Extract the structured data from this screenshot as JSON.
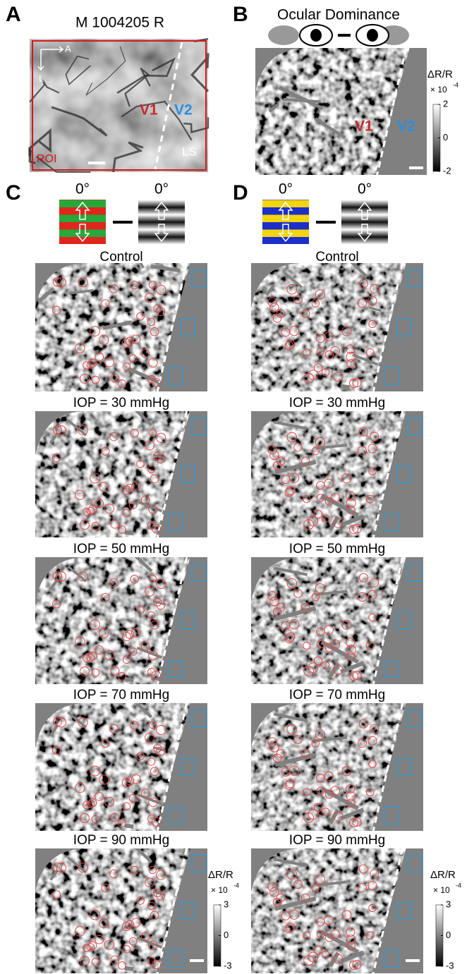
{
  "panel_labels": [
    "A",
    "B",
    "C",
    "D"
  ],
  "panel_a": {
    "title": "M 1004205 R",
    "axes": [
      "A",
      "L"
    ],
    "areas": [
      "V1",
      "V2"
    ],
    "roi": "ROI",
    "sulcus": "LS"
  },
  "panel_b": {
    "title": "Ocular Dominance",
    "areas": [
      "V1",
      "V2"
    ],
    "colorbar": {
      "label": "ΔR/R",
      "multiplier": "× 10",
      "exponent": "-4",
      "ticks": [
        2,
        0,
        -2
      ]
    }
  },
  "panel_c": {
    "stimulus_angles": [
      "0°",
      "0°"
    ],
    "conditions": [
      "Control",
      "IOP = 30 mmHg",
      "IOP = 50 mmHg",
      "IOP = 70 mmHg",
      "IOP = 90 mmHg"
    ],
    "colorbar": {
      "label": "ΔR/R",
      "multiplier": "× 10",
      "exponent": "-4",
      "ticks": [
        3,
        0,
        -3
      ]
    }
  },
  "panel_d": {
    "stimulus_angles": [
      "0°",
      "0°"
    ],
    "conditions": [
      "Control",
      "IOP = 30 mmHg",
      "IOP = 50 mmHg",
      "IOP = 70 mmHg",
      "IOP = 90 mmHg"
    ],
    "colorbar": {
      "label": "ΔR/R",
      "multiplier": "× 10",
      "exponent": "-4",
      "ticks": [
        3,
        0,
        -3
      ]
    }
  }
}
